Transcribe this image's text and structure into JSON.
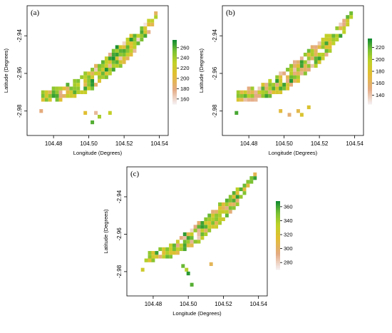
{
  "chart_data": [
    {
      "type": "heatmap",
      "panel_label": "(a)",
      "xlabel": "Longitude (Degrees)",
      "ylabel": "Latitude (Degrees)",
      "x_ticks": [
        104.48,
        104.5,
        104.52,
        104.54
      ],
      "x_tick_labels": [
        "104.48",
        "104.50",
        "104.52",
        "104.54"
      ],
      "y_ticks": [
        -2.94,
        -2.96,
        -2.98
      ],
      "y_tick_labels": [
        "-2.94",
        "-2.96",
        "-2.98"
      ],
      "xlim": [
        104.465,
        104.545
      ],
      "ylim": [
        -2.993,
        -2.924
      ],
      "colorbar": {
        "min": 150,
        "max": 275,
        "ticks": [
          160,
          180,
          200,
          220,
          240,
          260
        ],
        "tick_labels": [
          "160",
          "180",
          "200",
          "220",
          "240",
          "260"
        ]
      },
      "grid": false,
      "cell_size_deg": 0.002,
      "corridor": [
        {
          "x": 104.473,
          "y": -2.972,
          "hw": 0.003
        },
        {
          "x": 104.481,
          "y": -2.971,
          "hw": 0.0036
        },
        {
          "x": 104.49,
          "y": -2.969,
          "hw": 0.004
        },
        {
          "x": 104.5,
          "y": -2.964,
          "hw": 0.0058
        },
        {
          "x": 104.51,
          "y": -2.957,
          "hw": 0.0062
        },
        {
          "x": 104.518,
          "y": -2.95,
          "hw": 0.006
        },
        {
          "x": 104.526,
          "y": -2.943,
          "hw": 0.005
        },
        {
          "x": 104.533,
          "y": -2.936,
          "hw": 0.004
        },
        {
          "x": 104.539,
          "y": -2.928,
          "hw": 0.0022
        }
      ],
      "extra_cells": [
        [
          104.473,
          -2.98
        ],
        [
          104.498,
          -2.981
        ],
        [
          104.504,
          -2.981
        ],
        [
          104.506,
          -2.983
        ],
        [
          104.512,
          -2.981
        ],
        [
          104.502,
          -2.986
        ]
      ],
      "value_range": [
        150,
        275
      ],
      "value_bias": 0.72,
      "seed": 11
    },
    {
      "type": "heatmap",
      "panel_label": "(b)",
      "xlabel": "Longitude (Degrees)",
      "ylabel": "Latitude (Degrees)",
      "x_ticks": [
        104.48,
        104.5,
        104.52,
        104.54
      ],
      "x_tick_labels": [
        "104.48",
        "104.50",
        "104.52",
        "104.54"
      ],
      "y_ticks": [
        -2.94,
        -2.96,
        -2.98
      ],
      "y_tick_labels": [
        "-2.94",
        "-2.96",
        "-2.98"
      ],
      "xlim": [
        104.465,
        104.545
      ],
      "ylim": [
        -2.993,
        -2.924
      ],
      "colorbar": {
        "min": 125,
        "max": 235,
        "ticks": [
          140,
          160,
          180,
          200,
          220
        ],
        "tick_labels": [
          "140",
          "160",
          "180",
          "200",
          "220"
        ]
      },
      "grid": false,
      "cell_size_deg": 0.002,
      "corridor": [
        {
          "x": 104.473,
          "y": -2.972,
          "hw": 0.003
        },
        {
          "x": 104.481,
          "y": -2.971,
          "hw": 0.0036
        },
        {
          "x": 104.49,
          "y": -2.969,
          "hw": 0.004
        },
        {
          "x": 104.5,
          "y": -2.964,
          "hw": 0.0058
        },
        {
          "x": 104.51,
          "y": -2.957,
          "hw": 0.0062
        },
        {
          "x": 104.518,
          "y": -2.95,
          "hw": 0.006
        },
        {
          "x": 104.526,
          "y": -2.943,
          "hw": 0.005
        },
        {
          "x": 104.533,
          "y": -2.936,
          "hw": 0.004
        },
        {
          "x": 104.539,
          "y": -2.928,
          "hw": 0.0022
        }
      ],
      "extra_cells": [
        [
          104.473,
          -2.981
        ],
        [
          104.498,
          -2.98
        ],
        [
          104.503,
          -2.982
        ],
        [
          104.508,
          -2.98
        ],
        [
          104.51,
          -2.982
        ],
        [
          104.514,
          -2.978
        ]
      ],
      "value_range": [
        125,
        235
      ],
      "value_bias": 0.55,
      "seed": 23
    },
    {
      "type": "heatmap",
      "panel_label": "(c)",
      "xlabel": "Longitude (Degrees)",
      "ylabel": "Latitude (Degrees)",
      "x_ticks": [
        104.48,
        104.5,
        104.52,
        104.54
      ],
      "x_tick_labels": [
        "104.48",
        "104.50",
        "104.52",
        "104.54"
      ],
      "y_ticks": [
        -2.94,
        -2.96,
        -2.98
      ],
      "y_tick_labels": [
        "-2.94",
        "-2.96",
        "-2.98"
      ],
      "xlim": [
        104.465,
        104.545
      ],
      "ylim": [
        -2.993,
        -2.924
      ],
      "colorbar": {
        "min": 270,
        "max": 368,
        "ticks": [
          280,
          300,
          320,
          340,
          360
        ],
        "tick_labels": [
          "280",
          "300",
          "320",
          "340",
          "360"
        ]
      },
      "grid": false,
      "cell_size_deg": 0.002,
      "corridor": [
        {
          "x": 104.475,
          "y": -2.972,
          "hw": 0.0022
        },
        {
          "x": 104.482,
          "y": -2.971,
          "hw": 0.003
        },
        {
          "x": 104.49,
          "y": -2.969,
          "hw": 0.0034
        },
        {
          "x": 104.5,
          "y": -2.963,
          "hw": 0.0048
        },
        {
          "x": 104.51,
          "y": -2.956,
          "hw": 0.0055
        },
        {
          "x": 104.518,
          "y": -2.949,
          "hw": 0.0052
        },
        {
          "x": 104.526,
          "y": -2.942,
          "hw": 0.0044
        },
        {
          "x": 104.533,
          "y": -2.935,
          "hw": 0.0036
        },
        {
          "x": 104.539,
          "y": -2.927,
          "hw": 0.002
        }
      ],
      "extra_cells": [
        [
          104.474,
          -2.979
        ],
        [
          104.497,
          -2.977
        ],
        [
          104.499,
          -2.979
        ],
        [
          104.5,
          -2.981
        ],
        [
          104.502,
          -2.987
        ],
        [
          104.513,
          -2.976
        ]
      ],
      "value_range": [
        270,
        368
      ],
      "value_bias": 0.62,
      "seed": 37
    }
  ]
}
